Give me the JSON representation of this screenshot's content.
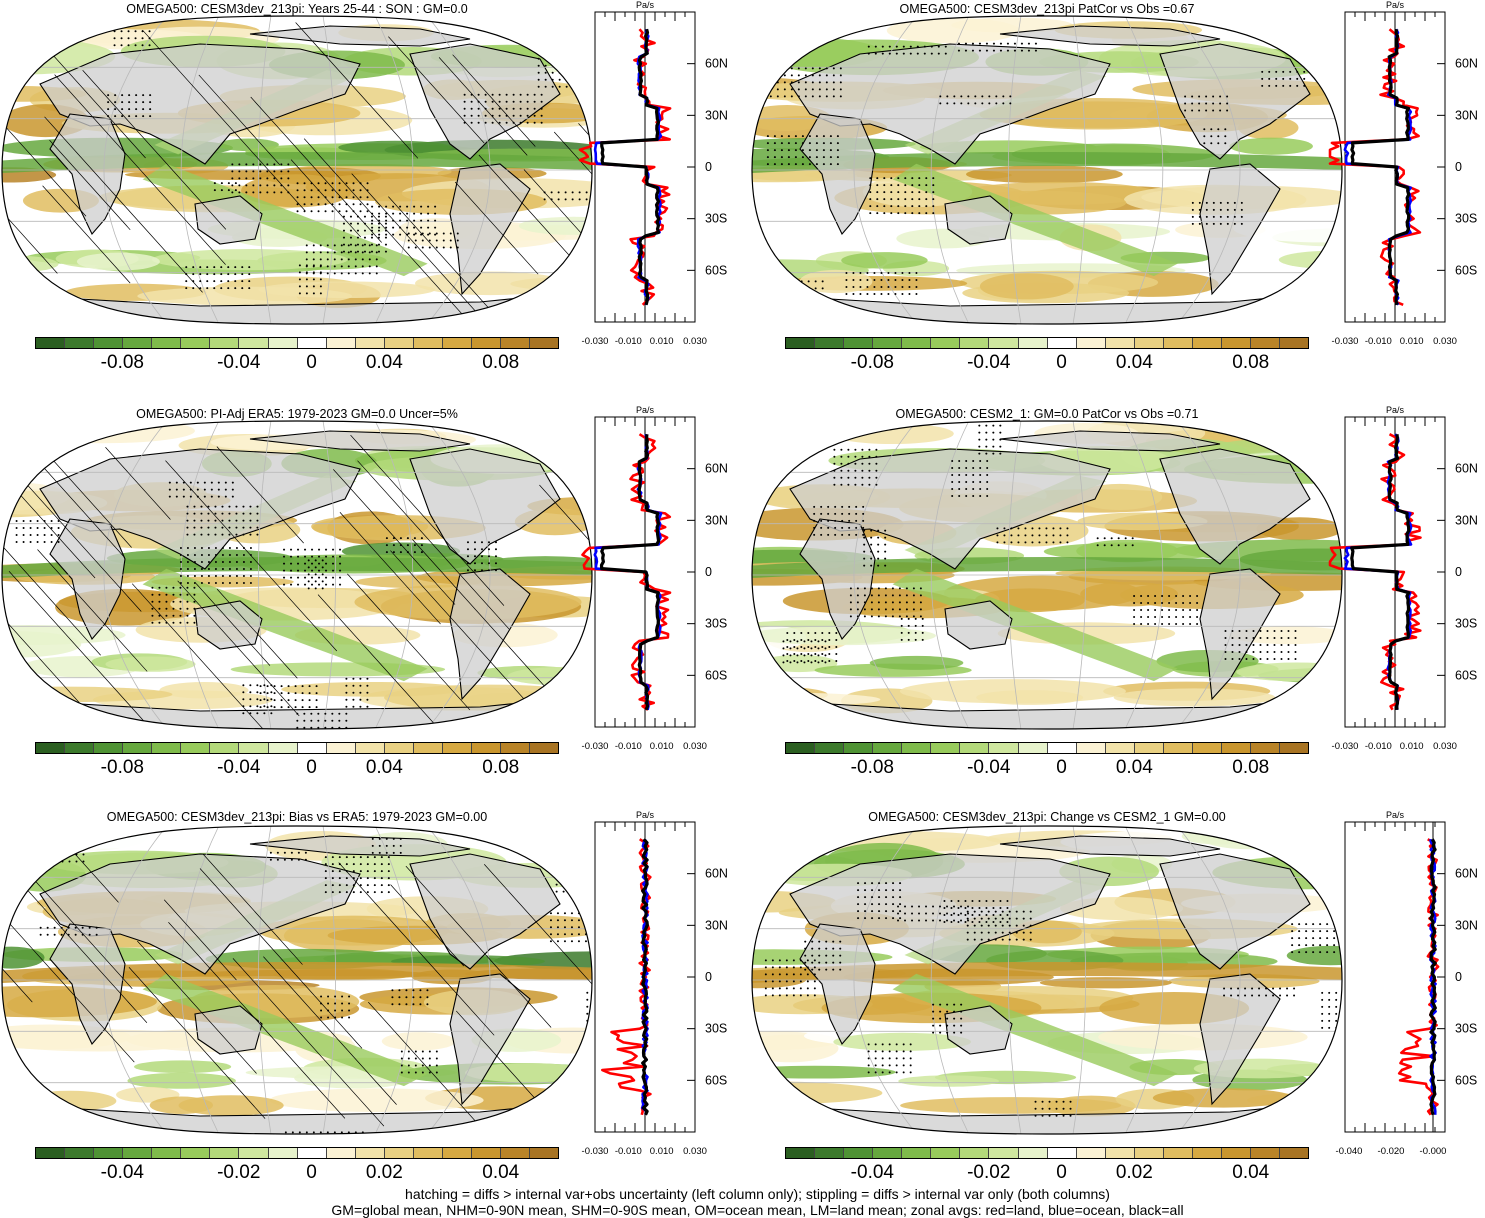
{
  "colorbar": {
    "colors": [
      "#2b5f21",
      "#3c7a2c",
      "#4f9334",
      "#66a83e",
      "#7fbb4b",
      "#98cb5c",
      "#b3d97a",
      "#cfe79f",
      "#e7f3cc",
      "#ffffff",
      "#fbf2d4",
      "#f2e3aa",
      "#e9d183",
      "#e0bd60",
      "#d6a942",
      "#c9962e",
      "#b98428",
      "#a87423"
    ],
    "labels_main": [
      "-0.08",
      "-0.04",
      "0",
      "0.04",
      "0.08"
    ],
    "labels_bias": [
      "-0.04",
      "-0.02",
      "0",
      "0.02",
      "0.04"
    ]
  },
  "zonal_axis": {
    "unit": "Pa/s",
    "lat_labels": [
      "60N",
      "30N",
      "0",
      "30S",
      "60S"
    ],
    "x_ticks_main": [
      "-0.030",
      "-0.010",
      "0.010",
      "0.030"
    ],
    "x_ticks_change": [
      "-0.040",
      "-0.020",
      "-0.000"
    ]
  },
  "legend_colors": {
    "land": "#ff0000",
    "ocean": "#0000ff",
    "all": "#000000"
  },
  "panels": [
    {
      "id": "p1",
      "title": "OMEGA500: CESM3dev_213pi: Years 25-44 : SON : GM=0.0",
      "hatched": true
    },
    {
      "id": "p2",
      "title": "OMEGA500: CESM3dev_213pi PatCor vs Obs =0.67",
      "hatched": false
    },
    {
      "id": "p3",
      "title": "OMEGA500: PI-Adj ERA5: 1979-2023 GM=0.0 Uncer=5%",
      "hatched": true
    },
    {
      "id": "p4",
      "title": "OMEGA500: CESM2_1: GM=0.0 PatCor vs Obs =0.71",
      "hatched": false
    },
    {
      "id": "p5",
      "title": "OMEGA500: CESM3dev_213pi: Bias vs ERA5: 1979-2023  GM=0.00",
      "hatched": true
    },
    {
      "id": "p6",
      "title": "OMEGA500: CESM3dev_213pi: Change vs CESM2_1 GM=0.00",
      "hatched": false
    }
  ],
  "footer": {
    "line1": "hatching = diffs > internal var+obs uncertainty (left column only); stippling = diffs > internal var only (both columns)",
    "line2": "GM=global mean, NHM=0-90N mean, SHM=0-90S mean, OM=ocean mean, LM=land mean; zonal avgs: red=land, blue=ocean, black=all"
  }
}
